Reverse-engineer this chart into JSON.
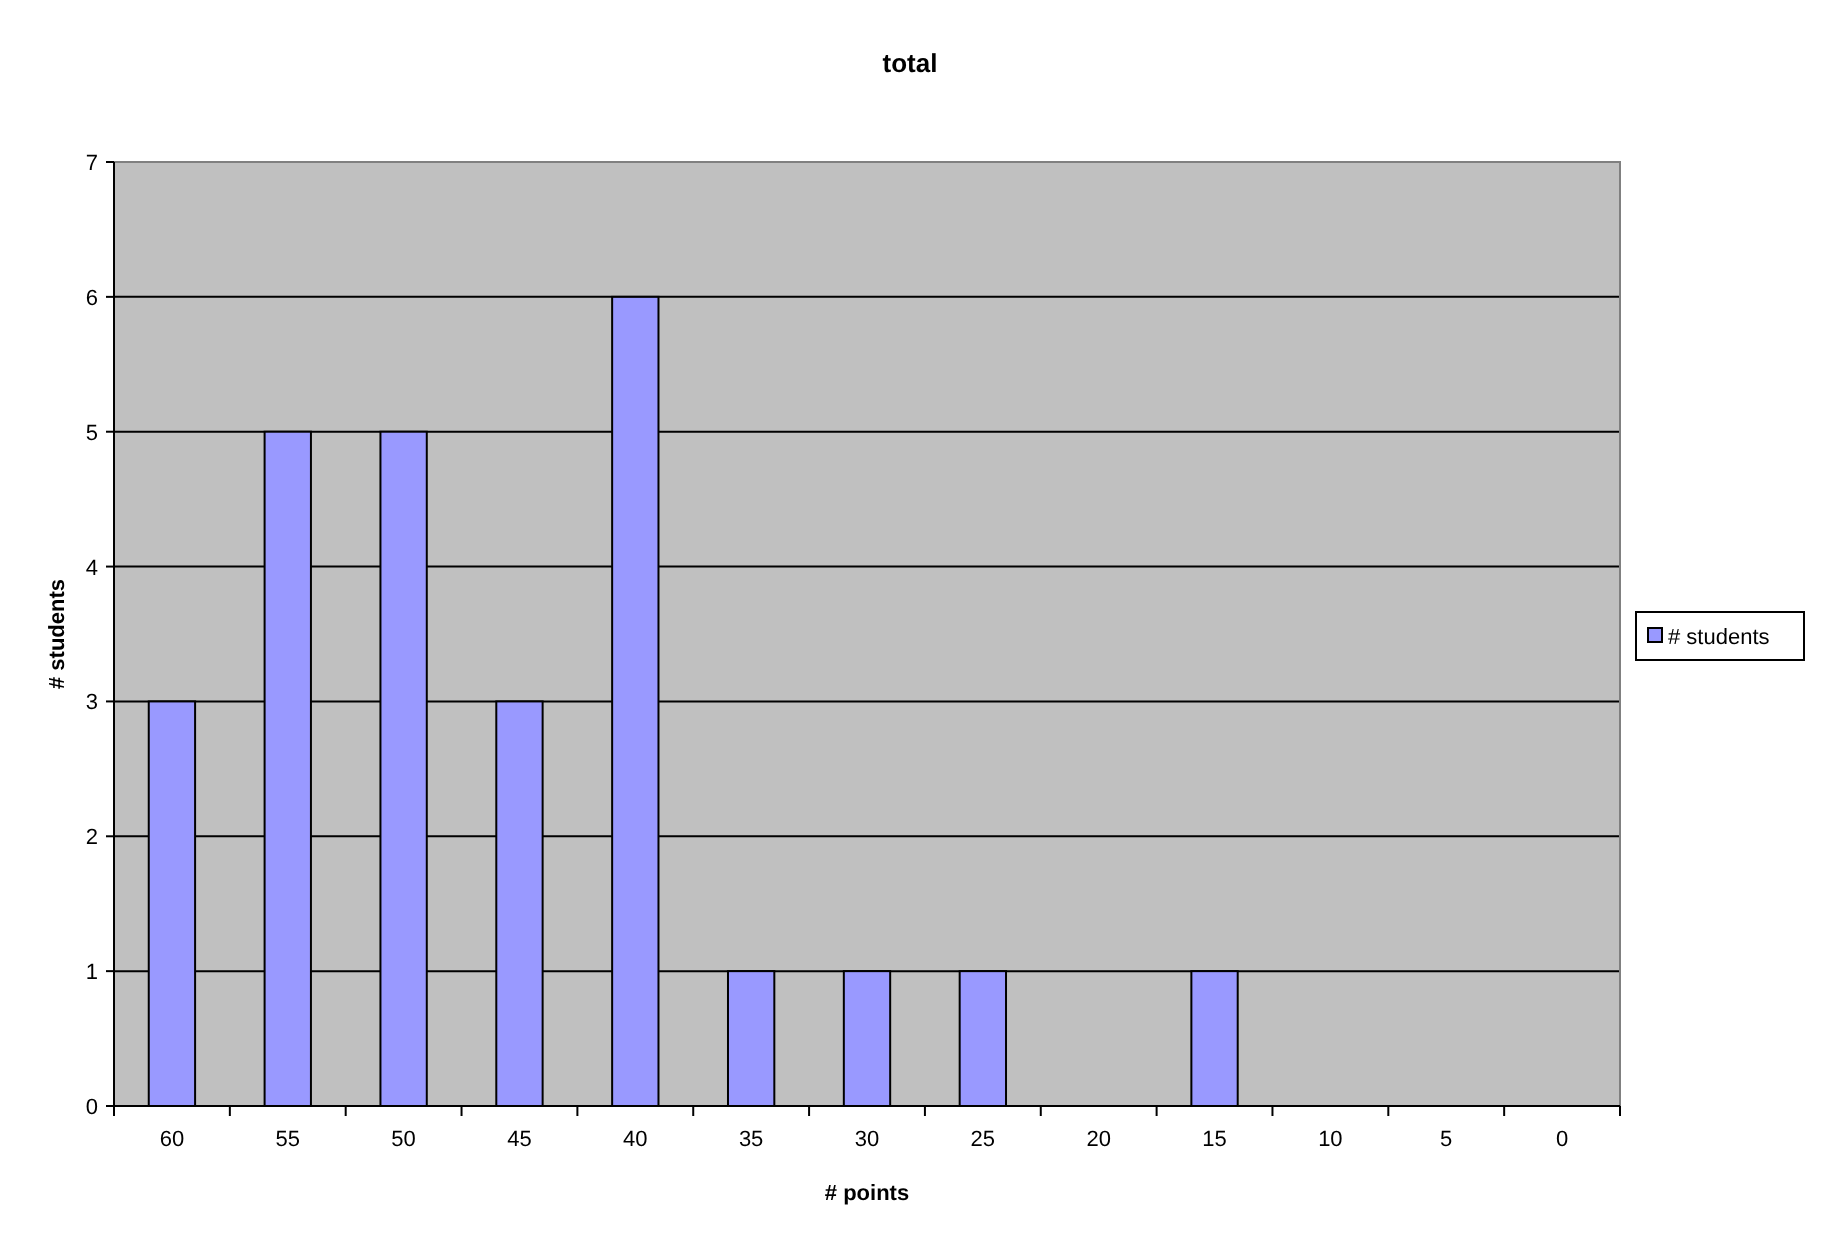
{
  "chart_data": {
    "type": "bar",
    "title": "total",
    "xlabel": "# points",
    "ylabel": "# students",
    "categories": [
      "60",
      "55",
      "50",
      "45",
      "40",
      "35",
      "30",
      "25",
      "20",
      "15",
      "10",
      "5",
      "0"
    ],
    "series": [
      {
        "name": "# students",
        "color": "#9999ff",
        "values": [
          3,
          5,
          5,
          3,
          6,
          1,
          1,
          1,
          0,
          1,
          0,
          0,
          0
        ]
      }
    ],
    "ylim": [
      0,
      7
    ],
    "yticks": [
      0,
      1,
      2,
      3,
      4,
      5,
      6,
      7
    ],
    "grid": "y",
    "legend": "right"
  }
}
